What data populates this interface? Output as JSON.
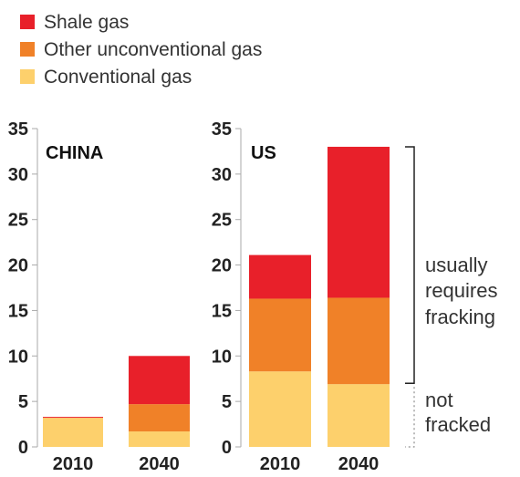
{
  "chart_data": [
    {
      "type": "bar",
      "stacked": true,
      "title": "CHINA",
      "categories": [
        "2010",
        "2040"
      ],
      "series": [
        {
          "name": "Conventional gas",
          "values": [
            3.2,
            1.7
          ]
        },
        {
          "name": "Other unconventional gas",
          "values": [
            0.0,
            3.0
          ]
        },
        {
          "name": "Shale gas",
          "values": [
            0.1,
            5.3
          ]
        }
      ],
      "ylim": [
        0,
        35
      ],
      "yticks": [
        "0",
        "5",
        "10",
        "15",
        "20",
        "25",
        "30",
        "35"
      ]
    },
    {
      "type": "bar",
      "stacked": true,
      "title": "US",
      "categories": [
        "2010",
        "2040"
      ],
      "series": [
        {
          "name": "Conventional gas",
          "values": [
            8.3,
            6.9
          ]
        },
        {
          "name": "Other unconventional gas",
          "values": [
            8.0,
            9.5
          ]
        },
        {
          "name": "Shale gas",
          "values": [
            4.8,
            16.6
          ]
        }
      ],
      "ylim": [
        0,
        35
      ],
      "yticks": [
        "0",
        "5",
        "10",
        "15",
        "20",
        "25",
        "30",
        "35"
      ],
      "annotations": [
        {
          "lines": [
            "usually",
            "requires",
            "fracking"
          ],
          "range": [
            7.0,
            33.0
          ]
        },
        {
          "lines": [
            "not",
            "fracked"
          ],
          "range": [
            0.0,
            7.0
          ]
        }
      ]
    }
  ],
  "legend": [
    {
      "label": "Shale gas",
      "color": "#e8202a"
    },
    {
      "label": "Other unconventional gas",
      "color": "#f08128"
    },
    {
      "label": "Conventional gas",
      "color": "#fdd06c"
    }
  ],
  "colors": {
    "Shale gas": "#e8202a",
    "Other unconventional gas": "#f08128",
    "Conventional gas": "#fdd06c",
    "axis": "#aaaaaa"
  }
}
